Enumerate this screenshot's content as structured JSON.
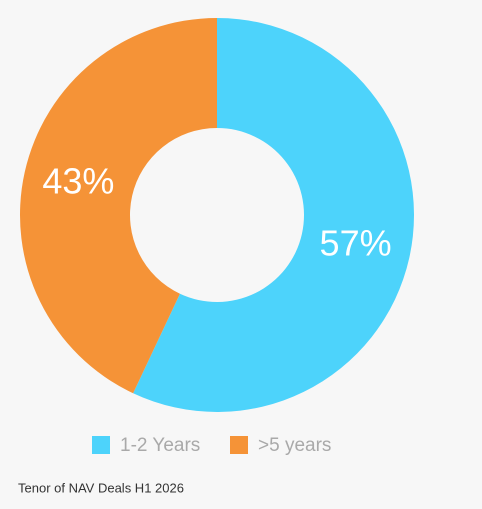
{
  "chart_data": {
    "type": "donut",
    "categories": [
      "1-2 Years",
      ">5 years"
    ],
    "values": [
      57,
      43
    ],
    "value_labels": [
      "57%",
      "43%"
    ],
    "colors": [
      "#4dd3fb",
      "#f59337"
    ]
  },
  "caption": "Tenor of NAV Deals H1 2026"
}
